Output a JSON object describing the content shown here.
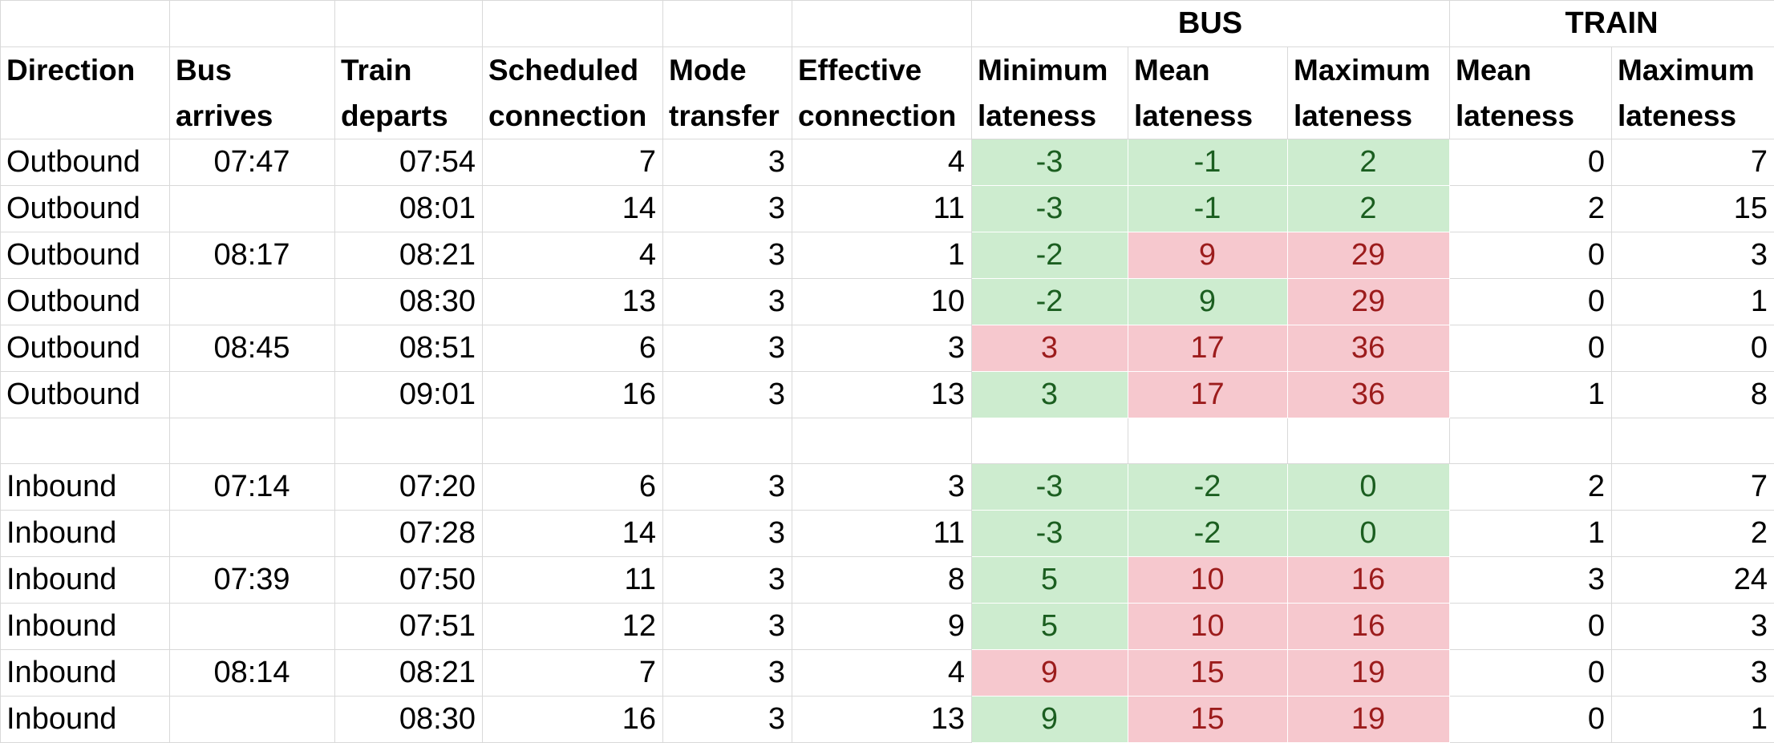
{
  "groups": {
    "bus": "BUS",
    "train": "TRAIN"
  },
  "headers": {
    "direction": [
      "Direction",
      ""
    ],
    "bus_arrives": [
      "Bus",
      "arrives"
    ],
    "train_departs": [
      "Train",
      "departs"
    ],
    "scheduled": [
      "Scheduled",
      "connection"
    ],
    "mode": [
      "Mode",
      "transfer"
    ],
    "effective": [
      "Effective",
      "connection"
    ],
    "bus_min": [
      "Minimum",
      "lateness"
    ],
    "bus_mean": [
      "Mean",
      "lateness"
    ],
    "bus_max": [
      "Maximum",
      "lateness"
    ],
    "train_mean": [
      "Mean",
      "lateness"
    ],
    "train_max": [
      "Maximum",
      "lateness"
    ]
  },
  "status_colors": {
    "good_fill": "#cdeccf",
    "good_text": "#1b5e20",
    "bad_fill": "#f6c8ce",
    "bad_text": "#9c1c1c"
  },
  "rows": [
    {
      "direction": "Outbound",
      "bus": "07:47",
      "train": "07:54",
      "scheduled": "7",
      "mode": "3",
      "effective": "4",
      "bmin": "-3",
      "bmin_s": "good",
      "bmean": "-1",
      "bmean_s": "good",
      "bmax": "2",
      "bmax_s": "good",
      "tmean": "0",
      "tmax": "7"
    },
    {
      "direction": "Outbound",
      "bus": "",
      "train": "08:01",
      "scheduled": "14",
      "mode": "3",
      "effective": "11",
      "bmin": "-3",
      "bmin_s": "good",
      "bmean": "-1",
      "bmean_s": "good",
      "bmax": "2",
      "bmax_s": "good",
      "tmean": "2",
      "tmax": "15"
    },
    {
      "direction": "Outbound",
      "bus": "08:17",
      "train": "08:21",
      "scheduled": "4",
      "mode": "3",
      "effective": "1",
      "bmin": "-2",
      "bmin_s": "good",
      "bmean": "9",
      "bmean_s": "bad",
      "bmax": "29",
      "bmax_s": "bad",
      "tmean": "0",
      "tmax": "3"
    },
    {
      "direction": "Outbound",
      "bus": "",
      "train": "08:30",
      "scheduled": "13",
      "mode": "3",
      "effective": "10",
      "bmin": "-2",
      "bmin_s": "good",
      "bmean": "9",
      "bmean_s": "good",
      "bmax": "29",
      "bmax_s": "bad",
      "tmean": "0",
      "tmax": "1"
    },
    {
      "direction": "Outbound",
      "bus": "08:45",
      "train": "08:51",
      "scheduled": "6",
      "mode": "3",
      "effective": "3",
      "bmin": "3",
      "bmin_s": "bad",
      "bmean": "17",
      "bmean_s": "bad",
      "bmax": "36",
      "bmax_s": "bad",
      "tmean": "0",
      "tmax": "0"
    },
    {
      "direction": "Outbound",
      "bus": "",
      "train": "09:01",
      "scheduled": "16",
      "mode": "3",
      "effective": "13",
      "bmin": "3",
      "bmin_s": "good",
      "bmean": "17",
      "bmean_s": "bad",
      "bmax": "36",
      "bmax_s": "bad",
      "tmean": "1",
      "tmax": "8"
    },
    null,
    {
      "direction": "Inbound",
      "bus": "07:14",
      "train": "07:20",
      "scheduled": "6",
      "mode": "3",
      "effective": "3",
      "bmin": "-3",
      "bmin_s": "good",
      "bmean": "-2",
      "bmean_s": "good",
      "bmax": "0",
      "bmax_s": "good",
      "tmean": "2",
      "tmax": "7"
    },
    {
      "direction": "Inbound",
      "bus": "",
      "train": "07:28",
      "scheduled": "14",
      "mode": "3",
      "effective": "11",
      "bmin": "-3",
      "bmin_s": "good",
      "bmean": "-2",
      "bmean_s": "good",
      "bmax": "0",
      "bmax_s": "good",
      "tmean": "1",
      "tmax": "2"
    },
    {
      "direction": "Inbound",
      "bus": "07:39",
      "train": "07:50",
      "scheduled": "11",
      "mode": "3",
      "effective": "8",
      "bmin": "5",
      "bmin_s": "good",
      "bmean": "10",
      "bmean_s": "bad",
      "bmax": "16",
      "bmax_s": "bad",
      "tmean": "3",
      "tmax": "24"
    },
    {
      "direction": "Inbound",
      "bus": "",
      "train": "07:51",
      "scheduled": "12",
      "mode": "3",
      "effective": "9",
      "bmin": "5",
      "bmin_s": "good",
      "bmean": "10",
      "bmean_s": "bad",
      "bmax": "16",
      "bmax_s": "bad",
      "tmean": "0",
      "tmax": "3"
    },
    {
      "direction": "Inbound",
      "bus": "08:14",
      "train": "08:21",
      "scheduled": "7",
      "mode": "3",
      "effective": "4",
      "bmin": "9",
      "bmin_s": "bad",
      "bmean": "15",
      "bmean_s": "bad",
      "bmax": "19",
      "bmax_s": "bad",
      "tmean": "0",
      "tmax": "3"
    },
    {
      "direction": "Inbound",
      "bus": "",
      "train": "08:30",
      "scheduled": "16",
      "mode": "3",
      "effective": "13",
      "bmin": "9",
      "bmin_s": "good",
      "bmean": "15",
      "bmean_s": "bad",
      "bmax": "19",
      "bmax_s": "bad",
      "tmean": "0",
      "tmax": "1"
    }
  ]
}
